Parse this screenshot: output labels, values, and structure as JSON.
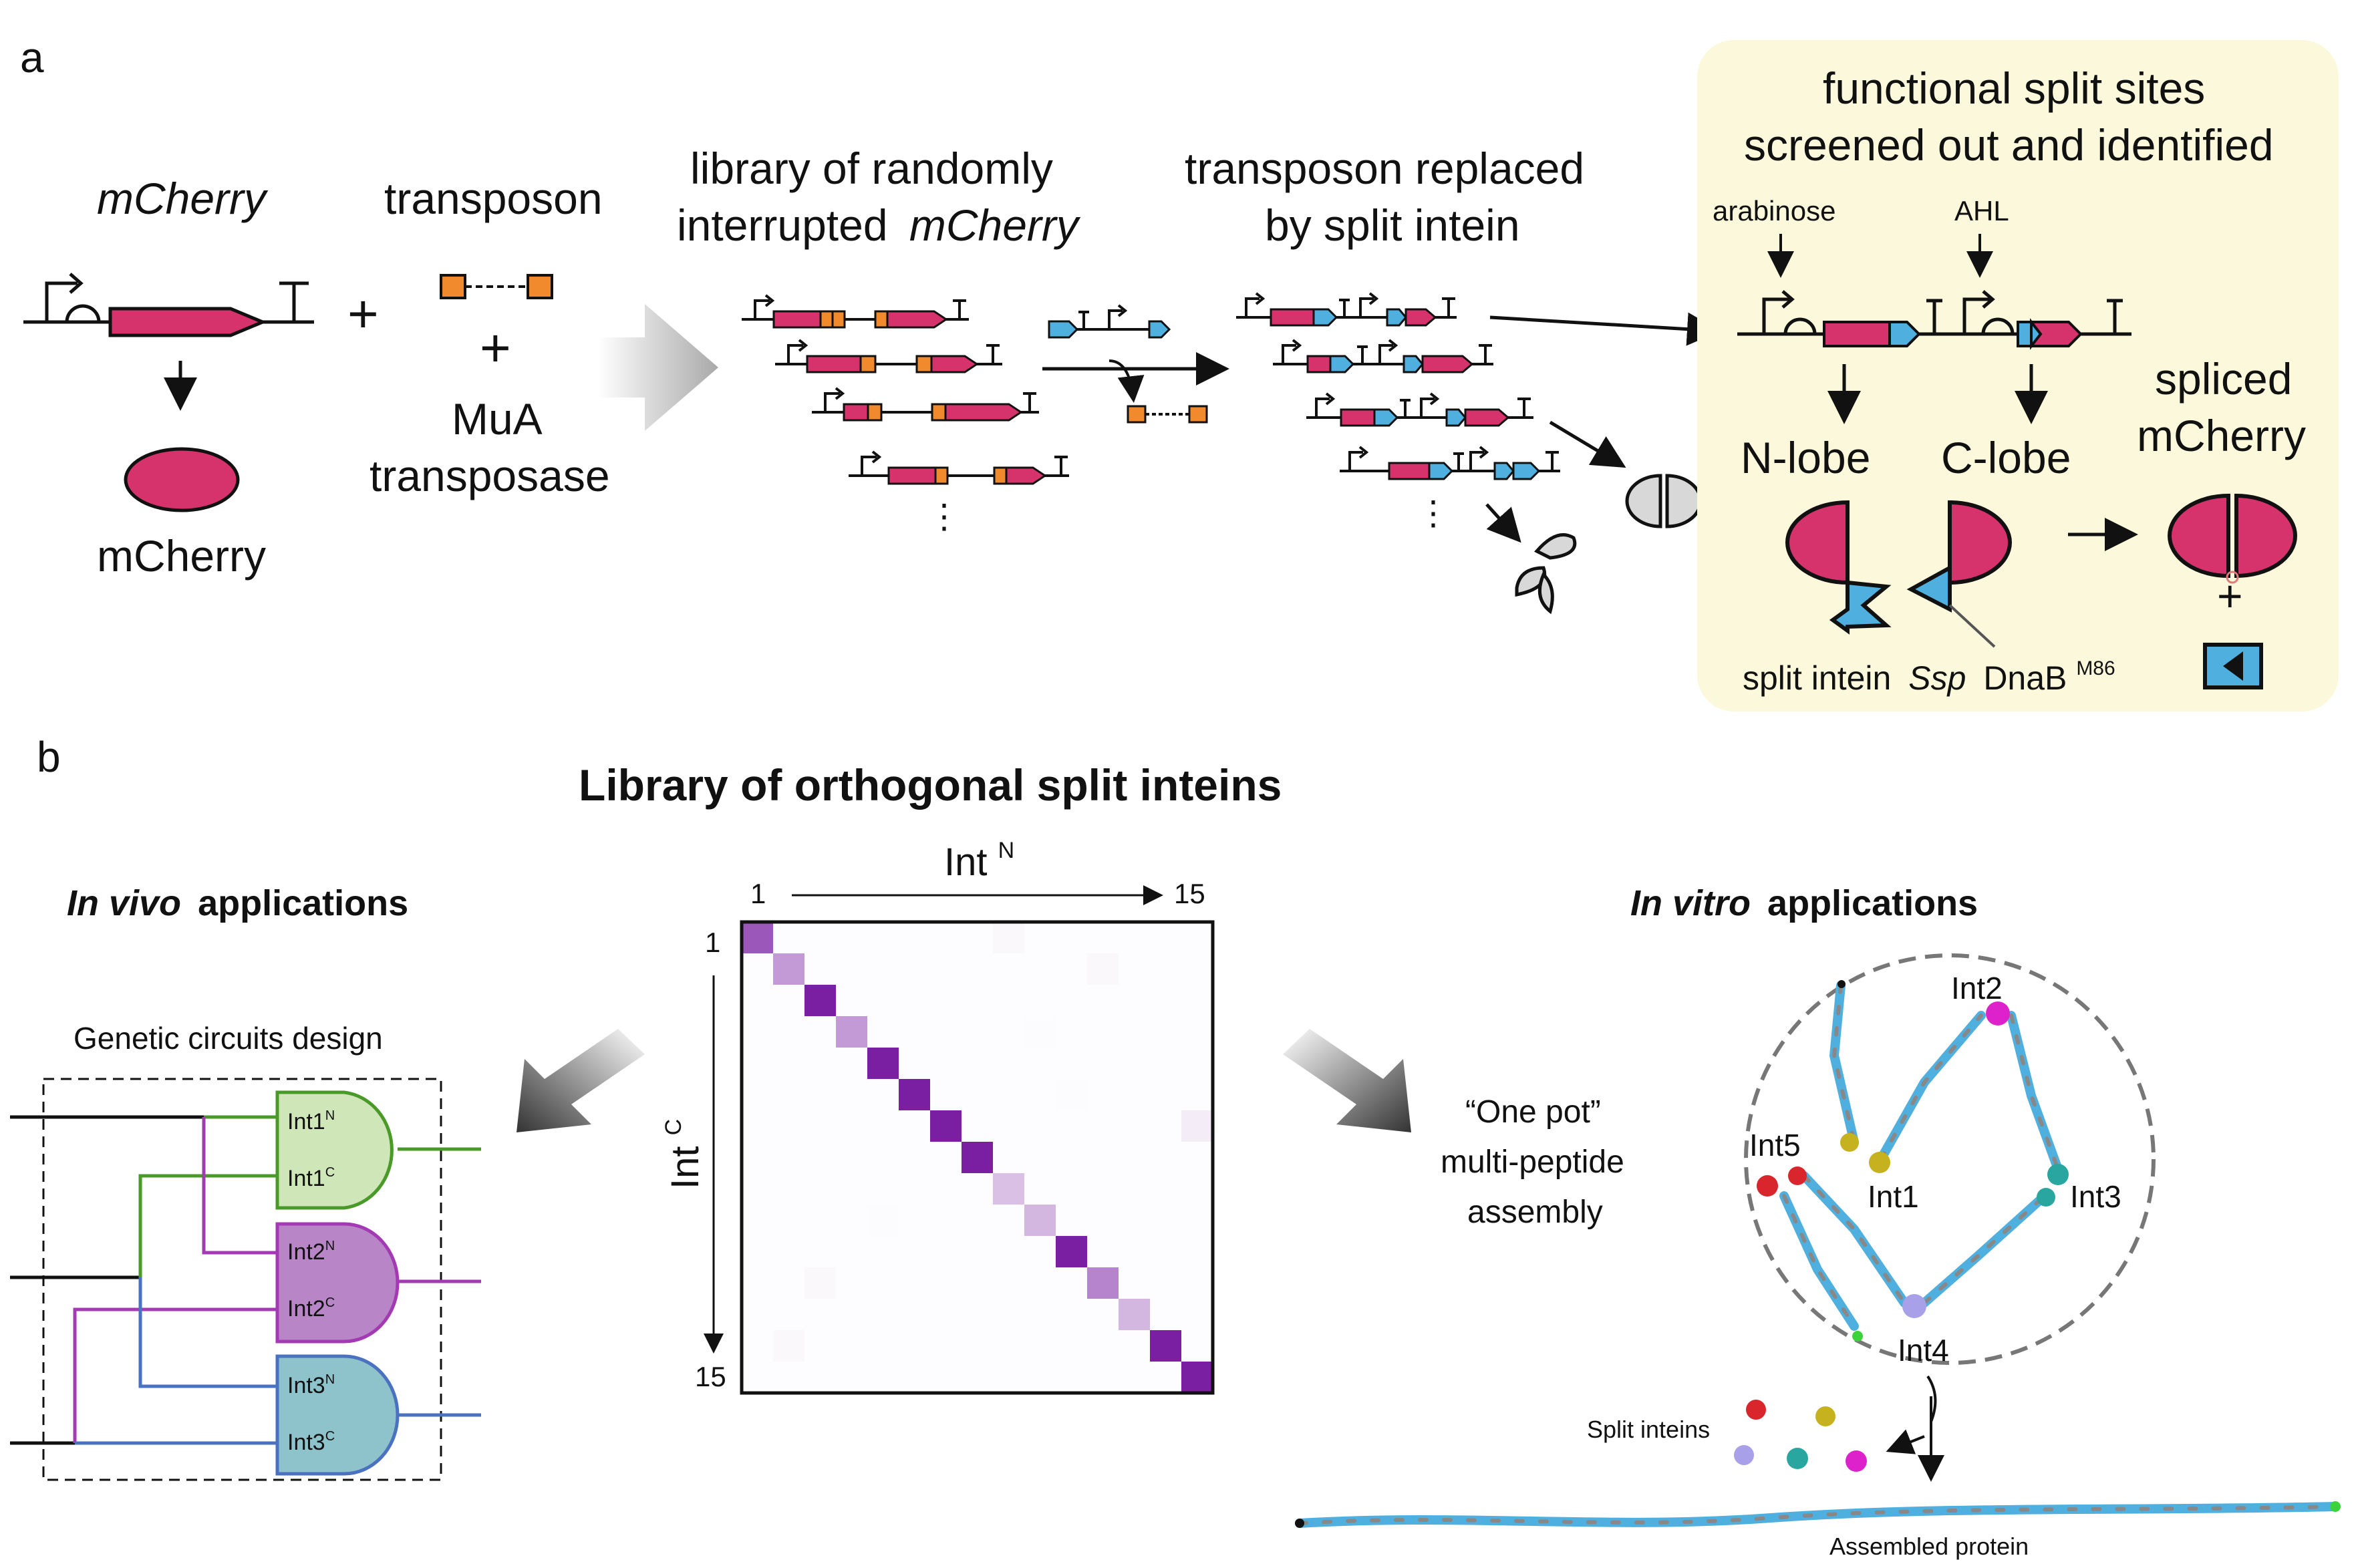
{
  "panel_a": {
    "label": "a",
    "mcherry_gene_label": "mCherry",
    "mcherry_protein_label": "mCherry",
    "transposon_label": "transposon",
    "transposase_line1": "MuA",
    "transposase_line2": "transposase",
    "plus": "+",
    "library_title_line1": "library of randomly",
    "library_title_line2_prefix": "interrupted",
    "library_title_line2_italic": "mCherry",
    "replace_title_line1": "transposon replaced",
    "replace_title_line2": "by split intein",
    "ellipsis": "⋮",
    "screen_box": {
      "title_line1": "functional split sites",
      "title_line2": "screened out and identified",
      "inducer_1": "arabinose",
      "inducer_2": "AHL",
      "n_lobe": "N-lobe",
      "c_lobe": "C-lobe",
      "spliced_line1": "spliced",
      "spliced_line2": "mCherry",
      "intein_prefix": "split intein",
      "intein_italic": "Ssp",
      "intein_name": "DnaB",
      "intein_superscript": "M86",
      "background_color": "#fbf8dc"
    }
  },
  "panel_b": {
    "label": "b",
    "title": "Library of orthogonal split inteins",
    "in_vivo_italic": "In vivo",
    "in_vivo_rest": "applications",
    "in_vitro_italic": "In vitro",
    "in_vitro_rest": "applications",
    "circuit_title": "Genetic circuits design",
    "gates": [
      {
        "n": "Int1",
        "n_sup": "N",
        "c": "Int1",
        "c_sup": "C",
        "fill": "#cfe6b8",
        "stroke": "#4a9a2a"
      },
      {
        "n": "Int2",
        "n_sup": "N",
        "c": "Int2",
        "c_sup": "C",
        "fill": "#b886c6",
        "stroke": "#a33ab3"
      },
      {
        "n": "Int3",
        "n_sup": "N",
        "c": "Int3",
        "c_sup": "C",
        "fill": "#8fc3cc",
        "stroke": "#4a72c0"
      }
    ],
    "one_pot_line1": "“One pot”",
    "one_pot_line2": "multi-peptide",
    "one_pot_line3": "assembly",
    "inteins": [
      "Int2",
      "Int5",
      "Int1",
      "Int3",
      "Int4"
    ],
    "split_inteins_label": "Split inteins",
    "assembled_label": "Assembled protein",
    "colors": {
      "mcherry": "#d6336c",
      "intein": "#4fb0e0",
      "transposon": "#f08a2c",
      "purple": "#7a1fa2"
    }
  },
  "chart_data": {
    "type": "heatmap",
    "xlabel": "Int",
    "xlabel_sup": "N",
    "ylabel": "Int",
    "ylabel_sup": "C",
    "x_range_labels": [
      "1",
      "15"
    ],
    "y_range_labels": [
      "1",
      "15"
    ],
    "size": 15,
    "diagonal": [
      0.75,
      0.45,
      1.0,
      0.45,
      1.0,
      1.0,
      1.0,
      1.0,
      0.28,
      0.32,
      1.0,
      0.55,
      0.32,
      1.0,
      1.0
    ],
    "off_diagonal": [
      {
        "row": 7,
        "col": 15,
        "value": 0.08
      },
      {
        "row": 1,
        "col": 9,
        "value": 0.03
      },
      {
        "row": 2,
        "col": 12,
        "value": 0.03
      },
      {
        "row": 4,
        "col": 10,
        "value": 0.02
      },
      {
        "row": 12,
        "col": 3,
        "value": 0.03
      },
      {
        "row": 14,
        "col": 2,
        "value": 0.03
      },
      {
        "row": 6,
        "col": 11,
        "value": 0.02
      },
      {
        "row": 10,
        "col": 5,
        "value": 0.02
      }
    ]
  }
}
